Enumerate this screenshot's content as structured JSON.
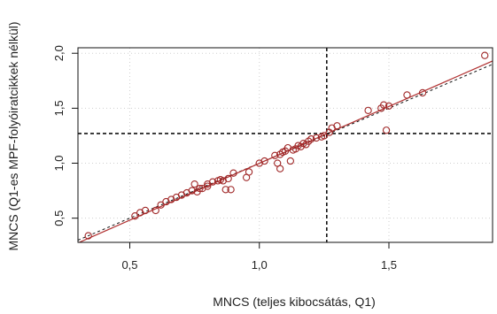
{
  "chart_data": {
    "type": "scatter",
    "xlabel": "MNCS (teljes kibocsátás, Q1)",
    "ylabel": "MNCS (Q1-es MPF-folyóiratcikkek nélkül)",
    "xlim": [
      0.3,
      1.9
    ],
    "ylim": [
      0.28,
      2.05
    ],
    "x_ticks": [
      {
        "value": 0.5,
        "label": "0,5"
      },
      {
        "value": 1.0,
        "label": "1,0"
      },
      {
        "value": 1.5,
        "label": "1,5"
      }
    ],
    "y_ticks": [
      {
        "value": 0.5,
        "label": "0,5"
      },
      {
        "value": 1.0,
        "label": "1,0"
      },
      {
        "value": 1.5,
        "label": "1,5"
      },
      {
        "value": 2.0,
        "label": "2,0"
      }
    ],
    "grid": true,
    "reference_lines": {
      "vertical_x": 1.26,
      "horizontal_y": 1.27
    },
    "identity_line": {
      "x": [
        0.3,
        1.9
      ],
      "y": [
        0.3,
        1.9
      ]
    },
    "fit_line": {
      "x": [
        0.3,
        1.9
      ],
      "y": [
        0.275,
        1.93
      ]
    },
    "points": {
      "x": [
        0.34,
        0.52,
        0.54,
        0.56,
        0.6,
        0.62,
        0.64,
        0.66,
        0.68,
        0.7,
        0.72,
        0.74,
        0.75,
        0.76,
        0.77,
        0.78,
        0.8,
        0.8,
        0.82,
        0.84,
        0.85,
        0.86,
        0.87,
        0.88,
        0.89,
        0.9,
        0.95,
        0.96,
        1.0,
        1.02,
        1.06,
        1.07,
        1.08,
        1.08,
        1.09,
        1.1,
        1.11,
        1.12,
        1.13,
        1.14,
        1.15,
        1.16,
        1.17,
        1.18,
        1.19,
        1.2,
        1.22,
        1.24,
        1.25,
        1.27,
        1.28,
        1.3,
        1.42,
        1.47,
        1.48,
        1.49,
        1.5,
        1.57,
        1.63,
        1.87
      ],
      "y": [
        0.34,
        0.52,
        0.55,
        0.57,
        0.57,
        0.62,
        0.65,
        0.67,
        0.69,
        0.71,
        0.73,
        0.75,
        0.81,
        0.74,
        0.77,
        0.77,
        0.79,
        0.81,
        0.83,
        0.84,
        0.85,
        0.84,
        0.76,
        0.86,
        0.76,
        0.91,
        0.87,
        0.92,
        1.0,
        1.02,
        1.07,
        1.0,
        0.95,
        1.08,
        1.1,
        1.11,
        1.14,
        1.02,
        1.12,
        1.13,
        1.16,
        1.15,
        1.18,
        1.17,
        1.2,
        1.22,
        1.23,
        1.24,
        1.25,
        1.28,
        1.32,
        1.34,
        1.48,
        1.5,
        1.53,
        1.3,
        1.52,
        1.62,
        1.64,
        1.98
      ]
    },
    "colors": {
      "points": "#a02828",
      "fit_line": "#b03030",
      "identity_line": "#111111",
      "reference_lines": "#111111",
      "grid": "#cfcfcf"
    }
  }
}
